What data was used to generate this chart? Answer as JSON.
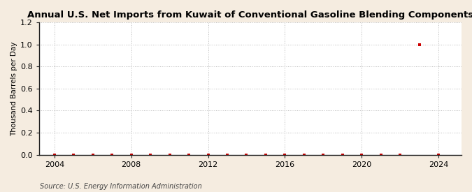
{
  "title": "Annual U.S. Net Imports from Kuwait of Conventional Gasoline Blending Components",
  "ylabel": "Thousand Barrels per Day",
  "source": "Source: U.S. Energy Information Administration",
  "figure_bg_color": "#f5ece0",
  "plot_bg_color": "#ffffff",
  "data_color": "#cc0000",
  "grid_color": "#bbbbbb",
  "spine_color": "#222222",
  "ylim": [
    0.0,
    1.2
  ],
  "yticks": [
    0.0,
    0.2,
    0.4,
    0.6,
    0.8,
    1.0,
    1.2
  ],
  "xlim": [
    2003.2,
    2025.2
  ],
  "xticks": [
    2004,
    2008,
    2012,
    2016,
    2020,
    2024
  ],
  "years": [
    2004,
    2005,
    2006,
    2007,
    2008,
    2009,
    2010,
    2011,
    2012,
    2013,
    2014,
    2015,
    2016,
    2017,
    2018,
    2019,
    2020,
    2021,
    2022,
    2023,
    2024
  ],
  "values": [
    0.0,
    0.0,
    0.0,
    0.0,
    0.0,
    0.0,
    0.0,
    0.0,
    0.0,
    0.0,
    0.0,
    0.0,
    0.0,
    0.0,
    0.0,
    0.0,
    0.0,
    0.0,
    0.0,
    1.0,
    0.0
  ]
}
